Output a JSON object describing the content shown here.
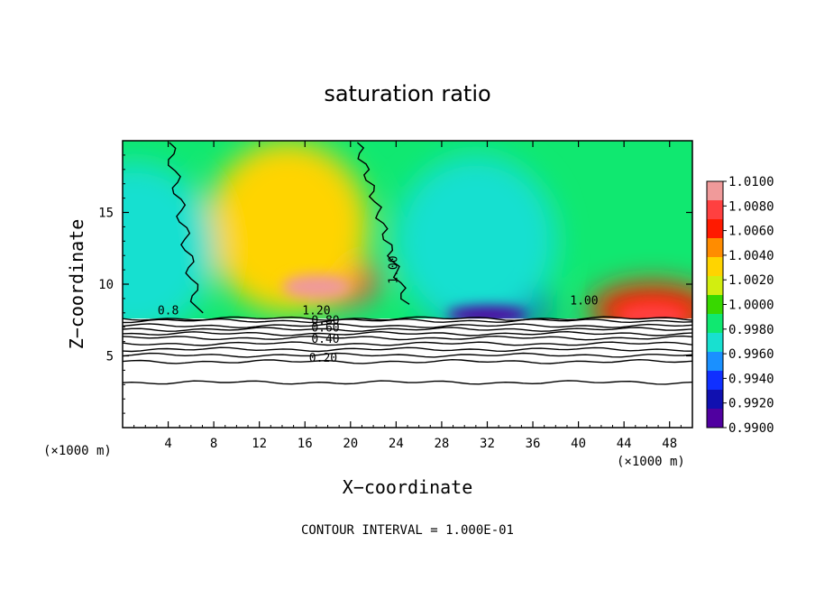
{
  "chart_data": {
    "type": "heatmap",
    "title": "saturation ratio",
    "xlabel": "X−coordinate",
    "ylabel": "Z−coordinate",
    "x_unit_left": "(×1000 m)",
    "x_unit_right": "(×1000 m)",
    "footer": "CONTOUR INTERVAL = 1.000E-01",
    "xlim": [
      0,
      50
    ],
    "ylim": [
      0,
      20
    ],
    "x_ticks": [
      4,
      8,
      12,
      16,
      20,
      24,
      28,
      32,
      36,
      40,
      44,
      48
    ],
    "x_tick_labels": [
      "4",
      "8",
      "12",
      "16",
      "20",
      "24",
      "28",
      "32",
      "36",
      "40",
      "44",
      "48"
    ],
    "y_ticks": [
      5,
      10,
      15
    ],
    "y_tick_labels": [
      "5",
      "10",
      "15"
    ],
    "colorbar": {
      "range": [
        0.99,
        1.01
      ],
      "tick_labels": [
        "1.0100",
        "1.0080",
        "1.0060",
        "1.0040",
        "1.0020",
        "1.0000",
        "0.9980",
        "0.9960",
        "0.9940",
        "0.9920",
        "0.9900"
      ],
      "colors": [
        "#f09a9a",
        "#ff4040",
        "#ff1a00",
        "#ff8c00",
        "#ffd400",
        "#d2ee10",
        "#38d800",
        "#10e870",
        "#18e0d0",
        "#1a90ff",
        "#1030ff",
        "#1010b0",
        "#5000a0"
      ]
    },
    "contour_labels": [
      {
        "text": "1.20",
        "x": 17.0,
        "z": 7.9
      },
      {
        "text": "0.80",
        "x": 17.8,
        "z": 7.2
      },
      {
        "text": "0.60",
        "x": 17.8,
        "z": 6.7
      },
      {
        "text": "0.40",
        "x": 17.8,
        "z": 5.9
      },
      {
        "text": "0.20",
        "x": 17.6,
        "z": 4.6
      },
      {
        "text": "1.00",
        "x": 24.1,
        "z": 11.0
      },
      {
        "text": "1.00",
        "x": 40.5,
        "z": 8.6
      },
      {
        "text": "0.8",
        "x": 4.0,
        "z": 7.9
      }
    ],
    "lower_contour_levels": [
      {
        "level": 1.2,
        "z": 7.6
      },
      {
        "level": 1.1,
        "z": 7.45
      },
      {
        "level": 0.9,
        "z": 7.1
      },
      {
        "level": 0.8,
        "z": 6.85
      },
      {
        "level": 0.7,
        "z": 6.55
      },
      {
        "level": 0.6,
        "z": 6.25
      },
      {
        "level": 0.5,
        "z": 5.85
      },
      {
        "level": 0.4,
        "z": 5.45
      },
      {
        "level": 0.3,
        "z": 5.05
      },
      {
        "level": 0.2,
        "z": 4.6
      },
      {
        "level": 0.1,
        "z": 3.15
      }
    ],
    "field_features": [
      {
        "kind": "supersaturated",
        "x": 17.0,
        "z": 10.2,
        "value": 1.007
      },
      {
        "kind": "supersaturated",
        "x": 14.5,
        "z": 14.0,
        "value": 1.003
      },
      {
        "kind": "subsaturated",
        "x": 32.0,
        "z": 8.5,
        "value": 0.9925
      },
      {
        "kind": "subsaturated",
        "x": 31.0,
        "z": 13.0,
        "value": 0.9962
      },
      {
        "kind": "subsaturated",
        "x": 1.0,
        "z": 12.5,
        "value": 0.9962
      },
      {
        "kind": "supersaturated",
        "x": 46.5,
        "z": 8.2,
        "value": 1.006
      }
    ]
  }
}
